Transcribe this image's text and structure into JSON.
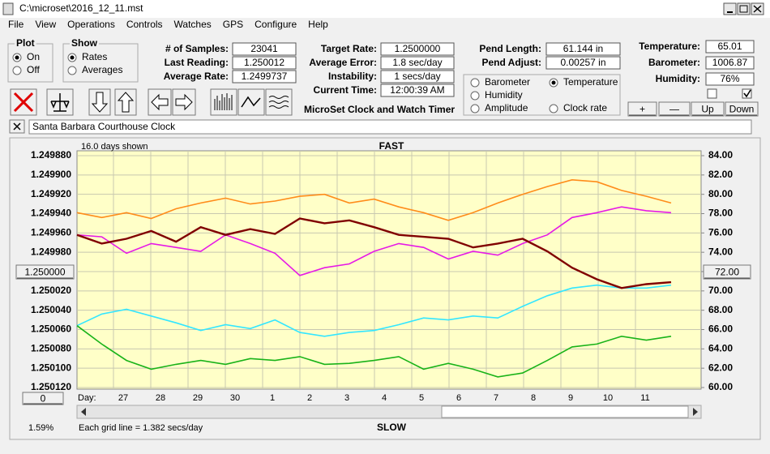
{
  "window": {
    "title": "C:\\microset\\2016_12_11.mst"
  },
  "menu": [
    "File",
    "View",
    "Operations",
    "Controls",
    "Watches",
    "GPS",
    "Configure",
    "Help"
  ],
  "plot_group": {
    "title": "Plot",
    "options": [
      "On",
      "Off"
    ],
    "selected": 0
  },
  "show_group": {
    "title": "Show",
    "options": [
      "Rates",
      "Averages"
    ],
    "selected": 0
  },
  "stats_left": [
    {
      "label": "# of Samples:",
      "value": "23041"
    },
    {
      "label": "Last Reading:",
      "value": "1.250012"
    },
    {
      "label": "Average Rate:",
      "value": "1.2499737"
    }
  ],
  "stats_mid": [
    {
      "label": "Target Rate:",
      "value": "1.2500000"
    },
    {
      "label": "Average Error:",
      "value": "1.8 sec/day"
    },
    {
      "label": "Instability:",
      "value": "1 secs/day"
    },
    {
      "label": "Current Time:",
      "value": "12:00:39 AM"
    }
  ],
  "stats_pend": [
    {
      "label": "Pend Length:",
      "value": "61.144 in"
    },
    {
      "label": "Pend Adjust:",
      "value": "0.00257 in"
    }
  ],
  "env": [
    {
      "label": "Temperature:",
      "value": "65.01"
    },
    {
      "label": "Barometer:",
      "value": "1006.87"
    },
    {
      "label": "Humidity:",
      "value": "76%"
    }
  ],
  "env_buttons": [
    "+",
    "—",
    "Up",
    "Down"
  ],
  "app_name": "MicroSet Clock and Watch Timer",
  "clock_name": "Santa Barbara Courthouse Clock",
  "chart_data": {
    "type": "line",
    "header_left": "16.0 days shown",
    "top_label": "FAST",
    "bottom_label": "SLOW",
    "x_prefix": "Day:",
    "day_labels": [
      "27",
      "28",
      "29",
      "30",
      "1",
      "2",
      "3",
      "4",
      "5",
      "6",
      "7",
      "8",
      "9",
      "10",
      "11"
    ],
    "left_button": "1.250000",
    "right_button": "72.00",
    "scroll_button": "0",
    "footer_left": "1.59%",
    "footer_note": "Each grid line = 1.382 secs/day",
    "grid": true,
    "selected_series": 3,
    "ylim": [
      1.25012,
      1.24988
    ],
    "yticks": [
      {
        "value": 1.24988,
        "label": "1.249880"
      },
      {
        "value": 1.2499,
        "label": "1.249900"
      },
      {
        "value": 1.24992,
        "label": "1.249920"
      },
      {
        "value": 1.24994,
        "label": "1.249940"
      },
      {
        "value": 1.24996,
        "label": "1.249960"
      },
      {
        "value": 1.24998,
        "label": "1.249980"
      },
      {
        "value": 1.25,
        "label": "1.250000"
      },
      {
        "value": 1.25002,
        "label": "1.250020"
      },
      {
        "value": 1.25004,
        "label": "1.250040"
      },
      {
        "value": 1.25006,
        "label": "1.250060"
      },
      {
        "value": 1.25008,
        "label": "1.250080"
      },
      {
        "value": 1.2501,
        "label": "1.250100"
      },
      {
        "value": 1.25012,
        "label": "1.250120"
      }
    ],
    "y2lim": [
      60,
      84
    ],
    "y2ticks": [
      {
        "value": 84,
        "label": "84.00"
      },
      {
        "value": 82,
        "label": "82.00"
      },
      {
        "value": 80,
        "label": "80.00"
      },
      {
        "value": 78,
        "label": "78.00"
      },
      {
        "value": 76,
        "label": "76.00"
      },
      {
        "value": 74,
        "label": "74.00"
      },
      {
        "value": 72,
        "label": "72.00"
      },
      {
        "value": 70,
        "label": "70.00"
      },
      {
        "value": 68,
        "label": "68.00"
      },
      {
        "value": 66,
        "label": "66.00"
      },
      {
        "value": 64,
        "label": "64.00"
      },
      {
        "value": 62,
        "label": "62.00"
      },
      {
        "value": 60,
        "label": "60.00"
      }
    ],
    "series": [
      {
        "name": "Barometer",
        "color": "#ff8c1a",
        "axis": "y2",
        "values": [
          78.1,
          77.6,
          78.1,
          77.5,
          78.5,
          79.1,
          79.6,
          79.0,
          79.3,
          79.8,
          80.0,
          79.1,
          79.5,
          78.7,
          78.1,
          77.3,
          78.1,
          79.1,
          80.0,
          80.8,
          81.5,
          81.3,
          80.4,
          79.8,
          79.1
        ]
      },
      {
        "name": "Humidity",
        "color": "#e619e6",
        "axis": "y2",
        "values": [
          75.8,
          75.6,
          73.9,
          74.9,
          74.5,
          74.1,
          75.8,
          74.9,
          73.9,
          71.6,
          72.4,
          72.8,
          74.1,
          74.9,
          74.5,
          73.3,
          74.1,
          73.7,
          74.9,
          75.8,
          77.6,
          78.1,
          78.7,
          78.3,
          78.1
        ]
      },
      {
        "name": "Amplitude",
        "color": "#33e6ff",
        "axis": "y2",
        "values": [
          66.4,
          67.6,
          68.1,
          67.4,
          66.7,
          65.9,
          66.5,
          66.1,
          67.0,
          65.7,
          65.3,
          65.7,
          65.9,
          66.5,
          67.2,
          67.0,
          67.4,
          67.2,
          68.4,
          69.5,
          70.3,
          70.6,
          70.3,
          70.3,
          70.6
        ]
      },
      {
        "name": "Temperature",
        "color": "#19b319",
        "axis": "y2",
        "values": [
          66.4,
          64.5,
          62.8,
          61.9,
          62.4,
          62.8,
          62.4,
          63.0,
          62.8,
          63.2,
          62.4,
          62.5,
          62.8,
          63.2,
          61.9,
          62.5,
          61.9,
          61.1,
          61.5,
          62.8,
          64.2,
          64.5,
          65.3,
          64.9,
          65.3
        ]
      },
      {
        "name": "Clock rate",
        "color": "#800000",
        "axis": "y",
        "values": [
          1.249962,
          1.249971,
          1.249966,
          1.249958,
          1.249969,
          1.249954,
          1.249962,
          1.249956,
          1.249961,
          1.249945,
          1.24995,
          1.249947,
          1.249954,
          1.249962,
          1.249964,
          1.249966,
          1.249975,
          1.249971,
          1.249966,
          1.249979,
          1.249996,
          1.250008,
          1.250017,
          1.250013,
          1.250011
        ]
      }
    ]
  }
}
